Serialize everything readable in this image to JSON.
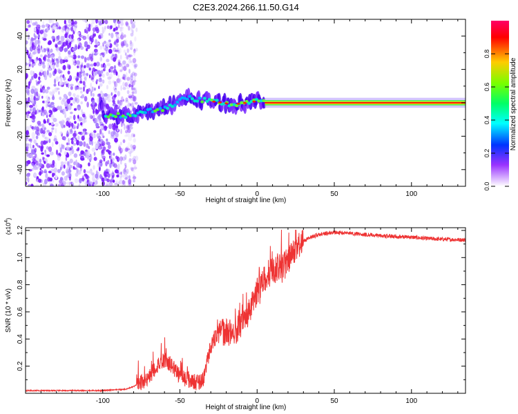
{
  "title": "C2E3.2024.266.11.50.G14",
  "chart_data": [
    {
      "type": "heatmap",
      "xlabel": "Height of straight line (km)",
      "ylabel": "Frequency (Hz)",
      "xlim": [
        -150,
        135
      ],
      "ylim": [
        -50,
        50
      ],
      "x_ticks": [
        -100,
        -50,
        0,
        50,
        100
      ],
      "y_ticks": [
        -40,
        -20,
        0,
        20,
        40
      ],
      "grid": false,
      "colorbar": {
        "label": "Normalized spectral amplitude",
        "range": [
          0.0,
          1.0
        ],
        "ticks": [
          "0.0",
          "0.2",
          "0.4",
          "0.6",
          "0.8"
        ],
        "colormap": [
          "#ff00ff",
          "#ff0000",
          "#ffff00",
          "#00ff00",
          "#00ffff",
          "#0000ff",
          "#8800ff",
          "#ffffff"
        ]
      },
      "features": {
        "noise_region_x": [
          -150,
          -80
        ],
        "ridge_track": [
          {
            "x": -100,
            "f": -8
          },
          {
            "x": -80,
            "f": -7
          },
          {
            "x": -60,
            "f": -3
          },
          {
            "x": -45,
            "f": 3
          },
          {
            "x": -30,
            "f": 1
          },
          {
            "x": -15,
            "f": -1
          },
          {
            "x": 0,
            "f": 1
          },
          {
            "x": 20,
            "f": 0
          },
          {
            "x": 135,
            "f": 0
          }
        ],
        "strong_band_x": [
          5,
          135
        ]
      }
    },
    {
      "type": "line",
      "xlabel": "Height of straight line (km)",
      "ylabel": "SNR (10 * v/v)",
      "y_multiplier": "(x10",
      "y_multiplier_exp": "4",
      "xlim": [
        -150,
        135
      ],
      "ylim": [
        0,
        1.22
      ],
      "x_ticks": [
        -100,
        -50,
        0,
        50,
        100
      ],
      "y_ticks": [
        "0.2",
        "0.4",
        "0.6",
        "0.8",
        "1.0",
        "1.2"
      ],
      "series": [
        {
          "name": "SNR",
          "color": "#ee3333",
          "x": [
            -150,
            -120,
            -100,
            -85,
            -80,
            -75,
            -70,
            -65,
            -60,
            -55,
            -50,
            -45,
            -40,
            -35,
            -30,
            -25,
            -20,
            -15,
            -10,
            -5,
            0,
            5,
            10,
            15,
            20,
            25,
            30,
            35,
            40,
            45,
            50,
            60,
            70,
            80,
            90,
            100,
            110,
            120,
            135
          ],
          "y": [
            0.02,
            0.02,
            0.02,
            0.03,
            0.05,
            0.08,
            0.12,
            0.2,
            0.25,
            0.2,
            0.13,
            0.1,
            0.08,
            0.1,
            0.35,
            0.45,
            0.45,
            0.45,
            0.5,
            0.6,
            0.75,
            0.85,
            0.9,
            0.93,
            0.98,
            1.06,
            1.12,
            1.15,
            1.17,
            1.18,
            1.185,
            1.18,
            1.17,
            1.16,
            1.155,
            1.15,
            1.14,
            1.135,
            1.13
          ]
        }
      ]
    }
  ]
}
